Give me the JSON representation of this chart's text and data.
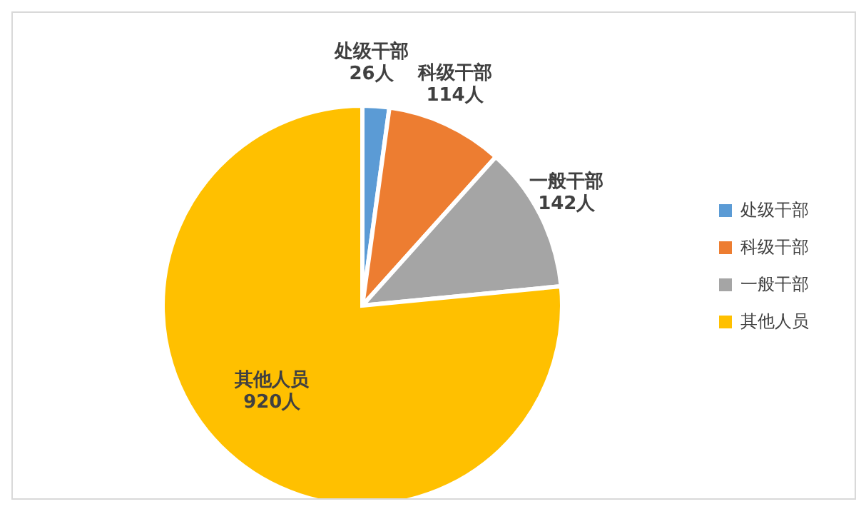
{
  "chart_data": {
    "type": "pie",
    "categories": [
      "处级干部",
      "科级干部",
      "一般干部",
      "其他人员"
    ],
    "values": [
      26,
      114,
      142,
      920
    ],
    "colors": [
      "#5b9bd5",
      "#ed7d31",
      "#a5a5a5",
      "#ffc000"
    ],
    "value_labels": [
      "26人",
      "114人",
      "142人",
      "920人"
    ],
    "legend": "right"
  }
}
